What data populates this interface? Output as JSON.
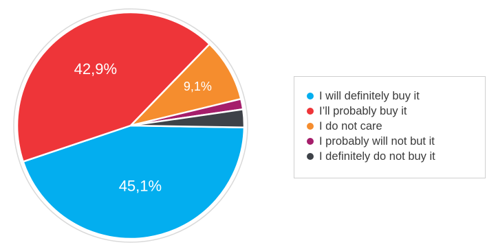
{
  "chart_data": {
    "type": "pie",
    "categories": [
      "I will definitely buy it",
      "I’ll probably buy it",
      "I do not care",
      "I probably will not but it",
      "I definitely do not buy it"
    ],
    "values": [
      45.1,
      42.9,
      9.1,
      1.5,
      2.6
    ],
    "data_labels": [
      "45,1%",
      "42,9%",
      "9,1%",
      "",
      ""
    ],
    "colors": [
      "#03aeef",
      "#ee3539",
      "#f58d2e",
      "#a51e6b",
      "#3e4248"
    ],
    "legend_position": "right"
  }
}
